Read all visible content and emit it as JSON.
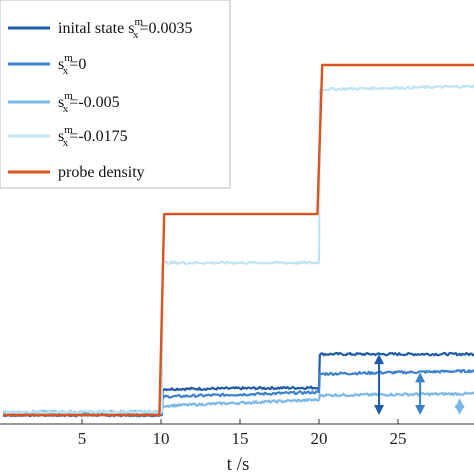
{
  "chart_data": {
    "type": "line",
    "xlabel": "t /s",
    "xlim": [
      0,
      30
    ],
    "x_ticks": [
      5,
      10,
      15,
      20,
      25
    ],
    "grid": false,
    "legend_position": "top-left",
    "legend": [
      {
        "prefix": "inital state s",
        "sup": "m",
        "sub": "x",
        "suffix": "=0.0035",
        "color": "#1f5ba8"
      },
      {
        "prefix": "s",
        "sup": "m",
        "sub": "x",
        "suffix": "=0",
        "color": "#3a82cf"
      },
      {
        "prefix": "s",
        "sup": "m",
        "sub": "x",
        "suffix": "=-0.005",
        "color": "#7ab8e8"
      },
      {
        "prefix": "s",
        "sup": "m",
        "sub": "x",
        "suffix": "=-0.0175",
        "color": "#bfe4f6"
      },
      {
        "prefix": "probe density",
        "sup": "",
        "sub": "",
        "suffix": "",
        "color": "#d9541e"
      }
    ],
    "series": [
      {
        "name": "inital state s_x^m=0.0035",
        "color": "#1f5ba8",
        "points": [
          [
            0,
            0.0
          ],
          [
            10.05,
            0.0
          ],
          [
            10.1,
            0.085
          ],
          [
            20,
            0.09
          ],
          [
            20.05,
            0.2
          ],
          [
            30,
            0.2
          ]
        ]
      },
      {
        "name": "s_x^m=0",
        "color": "#3a82cf",
        "points": [
          [
            0,
            0.0
          ],
          [
            10.05,
            0.0
          ],
          [
            10.1,
            0.06
          ],
          [
            20,
            0.075
          ],
          [
            20.05,
            0.135
          ],
          [
            30,
            0.145
          ]
        ]
      },
      {
        "name": "s_x^m=-0.005",
        "color": "#7ab8e8",
        "points": [
          [
            0,
            0.01
          ],
          [
            10.05,
            0.01
          ],
          [
            10.1,
            0.03
          ],
          [
            20,
            0.05
          ],
          [
            20.05,
            0.065
          ],
          [
            30,
            0.07
          ]
        ]
      },
      {
        "name": "s_x^m=-0.0175",
        "color": "#bfe4f6",
        "points": [
          [
            0,
            0.01
          ],
          [
            10.05,
            0.01
          ],
          [
            10.1,
            0.5
          ],
          [
            20,
            0.5
          ],
          [
            20.05,
            1.07
          ],
          [
            30,
            1.08
          ]
        ]
      },
      {
        "name": "probe density",
        "color": "#d9541e",
        "points": [
          [
            0,
            0.0
          ],
          [
            9.9,
            0.0
          ],
          [
            10.2,
            0.66
          ],
          [
            19.9,
            0.66
          ],
          [
            20.2,
            1.15
          ],
          [
            30,
            1.15
          ]
        ]
      }
    ],
    "arrows": [
      {
        "x": 23.8,
        "y_from": 0.0,
        "y_to": 0.2,
        "color": "#1f5ba8"
      },
      {
        "x": 26.4,
        "y_from": 0.0,
        "y_to": 0.14,
        "color": "#3a82cf"
      },
      {
        "x": 28.9,
        "y_from": 0.0,
        "y_to": 0.055,
        "color": "#7ab8e8"
      }
    ]
  }
}
